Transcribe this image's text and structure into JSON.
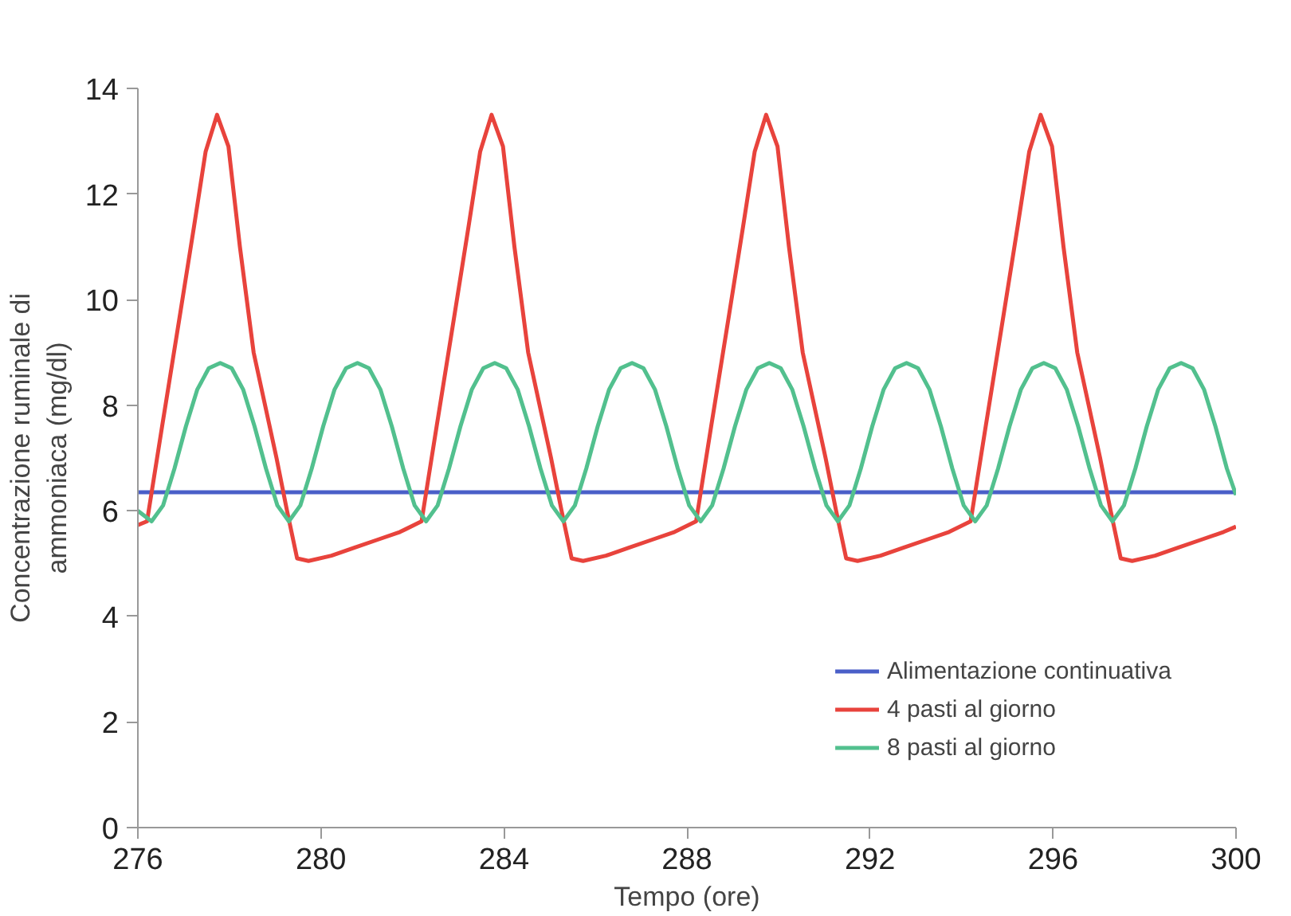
{
  "chart_data": {
    "type": "line",
    "xlabel": "Tempo (ore)",
    "ylabel": "Concentrazione ruminale di ammoniaca (mg/dl)",
    "xlim": [
      276,
      300
    ],
    "xticks": [
      276,
      280,
      284,
      288,
      292,
      296,
      300
    ],
    "ylim": [
      0,
      14
    ],
    "yticks": [
      0,
      2,
      4,
      6,
      8,
      10,
      12,
      14
    ],
    "grid": false,
    "legend": "bottom right",
    "line_style": "solid",
    "marker": "none",
    "series": [
      {
        "name": "Alimentazione continuativa",
        "color": "#4a5fc8",
        "x": [
          276,
          300
        ],
        "values": [
          6.35,
          6.35
        ]
      },
      {
        "name": "4 pasti al giorno",
        "color": "#e8433c",
        "x": [
          276,
          276.2,
          276.53,
          276.9,
          277.23,
          277.48,
          277.73,
          277.98,
          278.23,
          278.53,
          278.83,
          279.03,
          279.26,
          279.48,
          279.73,
          280.23,
          280.73,
          281.23,
          281.73,
          282.2,
          282.53,
          282.9,
          283.23,
          283.48,
          283.73,
          283.98,
          284.23,
          284.53,
          284.83,
          285.03,
          285.26,
          285.48,
          285.73,
          286.23,
          286.73,
          287.23,
          287.73,
          288.2,
          288.53,
          288.9,
          289.23,
          289.48,
          289.73,
          289.98,
          290.23,
          290.53,
          290.83,
          291.03,
          291.26,
          291.48,
          291.73,
          292.23,
          292.73,
          293.23,
          293.73,
          294.2,
          294.53,
          294.9,
          295.23,
          295.48,
          295.73,
          295.98,
          296.23,
          296.53,
          296.83,
          297.03,
          297.26,
          297.48,
          297.73,
          298.23,
          298.73,
          299.23,
          299.73,
          300
        ],
        "values": [
          5.73,
          5.8,
          7.6,
          9.6,
          11.4,
          12.8,
          13.5,
          12.9,
          11.0,
          9.0,
          7.8,
          7.0,
          6.0,
          5.1,
          5.05,
          5.15,
          5.3,
          5.45,
          5.6,
          5.8,
          7.6,
          9.6,
          11.4,
          12.8,
          13.5,
          12.9,
          11.0,
          9.0,
          7.8,
          7.0,
          6.0,
          5.1,
          5.05,
          5.15,
          5.3,
          5.45,
          5.6,
          5.8,
          7.6,
          9.6,
          11.4,
          12.8,
          13.5,
          12.9,
          11.0,
          9.0,
          7.8,
          7.0,
          6.0,
          5.1,
          5.05,
          5.15,
          5.3,
          5.45,
          5.6,
          5.8,
          7.6,
          9.6,
          11.4,
          12.8,
          13.5,
          12.9,
          11.0,
          9.0,
          7.8,
          7.0,
          6.0,
          5.1,
          5.05,
          5.15,
          5.3,
          5.45,
          5.6,
          5.7
        ]
      },
      {
        "name": "8 pasti al giorno",
        "color": "#52c08e",
        "x": [
          276,
          276.3,
          276.55,
          276.8,
          277.05,
          277.3,
          277.55,
          277.8,
          278.05,
          278.3,
          278.55,
          278.8,
          279.05,
          279.3,
          279.55,
          279.8,
          280.05,
          280.3,
          280.55,
          280.8,
          281.05,
          281.3,
          281.55,
          281.8,
          282.05,
          282.3,
          282.55,
          282.8,
          283.05,
          283.3,
          283.55,
          283.8,
          284.05,
          284.3,
          284.55,
          284.8,
          285.05,
          285.3,
          285.55,
          285.8,
          286.05,
          286.3,
          286.55,
          286.8,
          287.05,
          287.3,
          287.55,
          287.8,
          288.05,
          288.3,
          288.55,
          288.8,
          289.05,
          289.3,
          289.55,
          289.8,
          290.05,
          290.3,
          290.55,
          290.8,
          291.05,
          291.3,
          291.55,
          291.8,
          292.05,
          292.3,
          292.55,
          292.8,
          293.05,
          293.3,
          293.55,
          293.8,
          294.05,
          294.3,
          294.55,
          294.8,
          295.05,
          295.3,
          295.55,
          295.8,
          296.05,
          296.3,
          296.55,
          296.8,
          297.05,
          297.3,
          297.55,
          297.8,
          298.05,
          298.3,
          298.55,
          298.8,
          299.05,
          299.3,
          299.55,
          299.8,
          300
        ],
        "values": [
          6.0,
          5.8,
          6.1,
          6.8,
          7.6,
          8.3,
          8.7,
          8.8,
          8.7,
          8.3,
          7.6,
          6.8,
          6.1,
          5.8,
          6.1,
          6.8,
          7.6,
          8.3,
          8.7,
          8.8,
          8.7,
          8.3,
          7.6,
          6.8,
          6.1,
          5.8,
          6.1,
          6.8,
          7.6,
          8.3,
          8.7,
          8.8,
          8.7,
          8.3,
          7.6,
          6.8,
          6.1,
          5.8,
          6.1,
          6.8,
          7.6,
          8.3,
          8.7,
          8.8,
          8.7,
          8.3,
          7.6,
          6.8,
          6.1,
          5.8,
          6.1,
          6.8,
          7.6,
          8.3,
          8.7,
          8.8,
          8.7,
          8.3,
          7.6,
          6.8,
          6.1,
          5.8,
          6.1,
          6.8,
          7.6,
          8.3,
          8.7,
          8.8,
          8.7,
          8.3,
          7.6,
          6.8,
          6.1,
          5.8,
          6.1,
          6.8,
          7.6,
          8.3,
          8.7,
          8.8,
          8.7,
          8.3,
          7.6,
          6.8,
          6.1,
          5.8,
          6.1,
          6.8,
          7.6,
          8.3,
          8.7,
          8.8,
          8.7,
          8.3,
          7.6,
          6.8,
          6.3
        ]
      }
    ]
  }
}
